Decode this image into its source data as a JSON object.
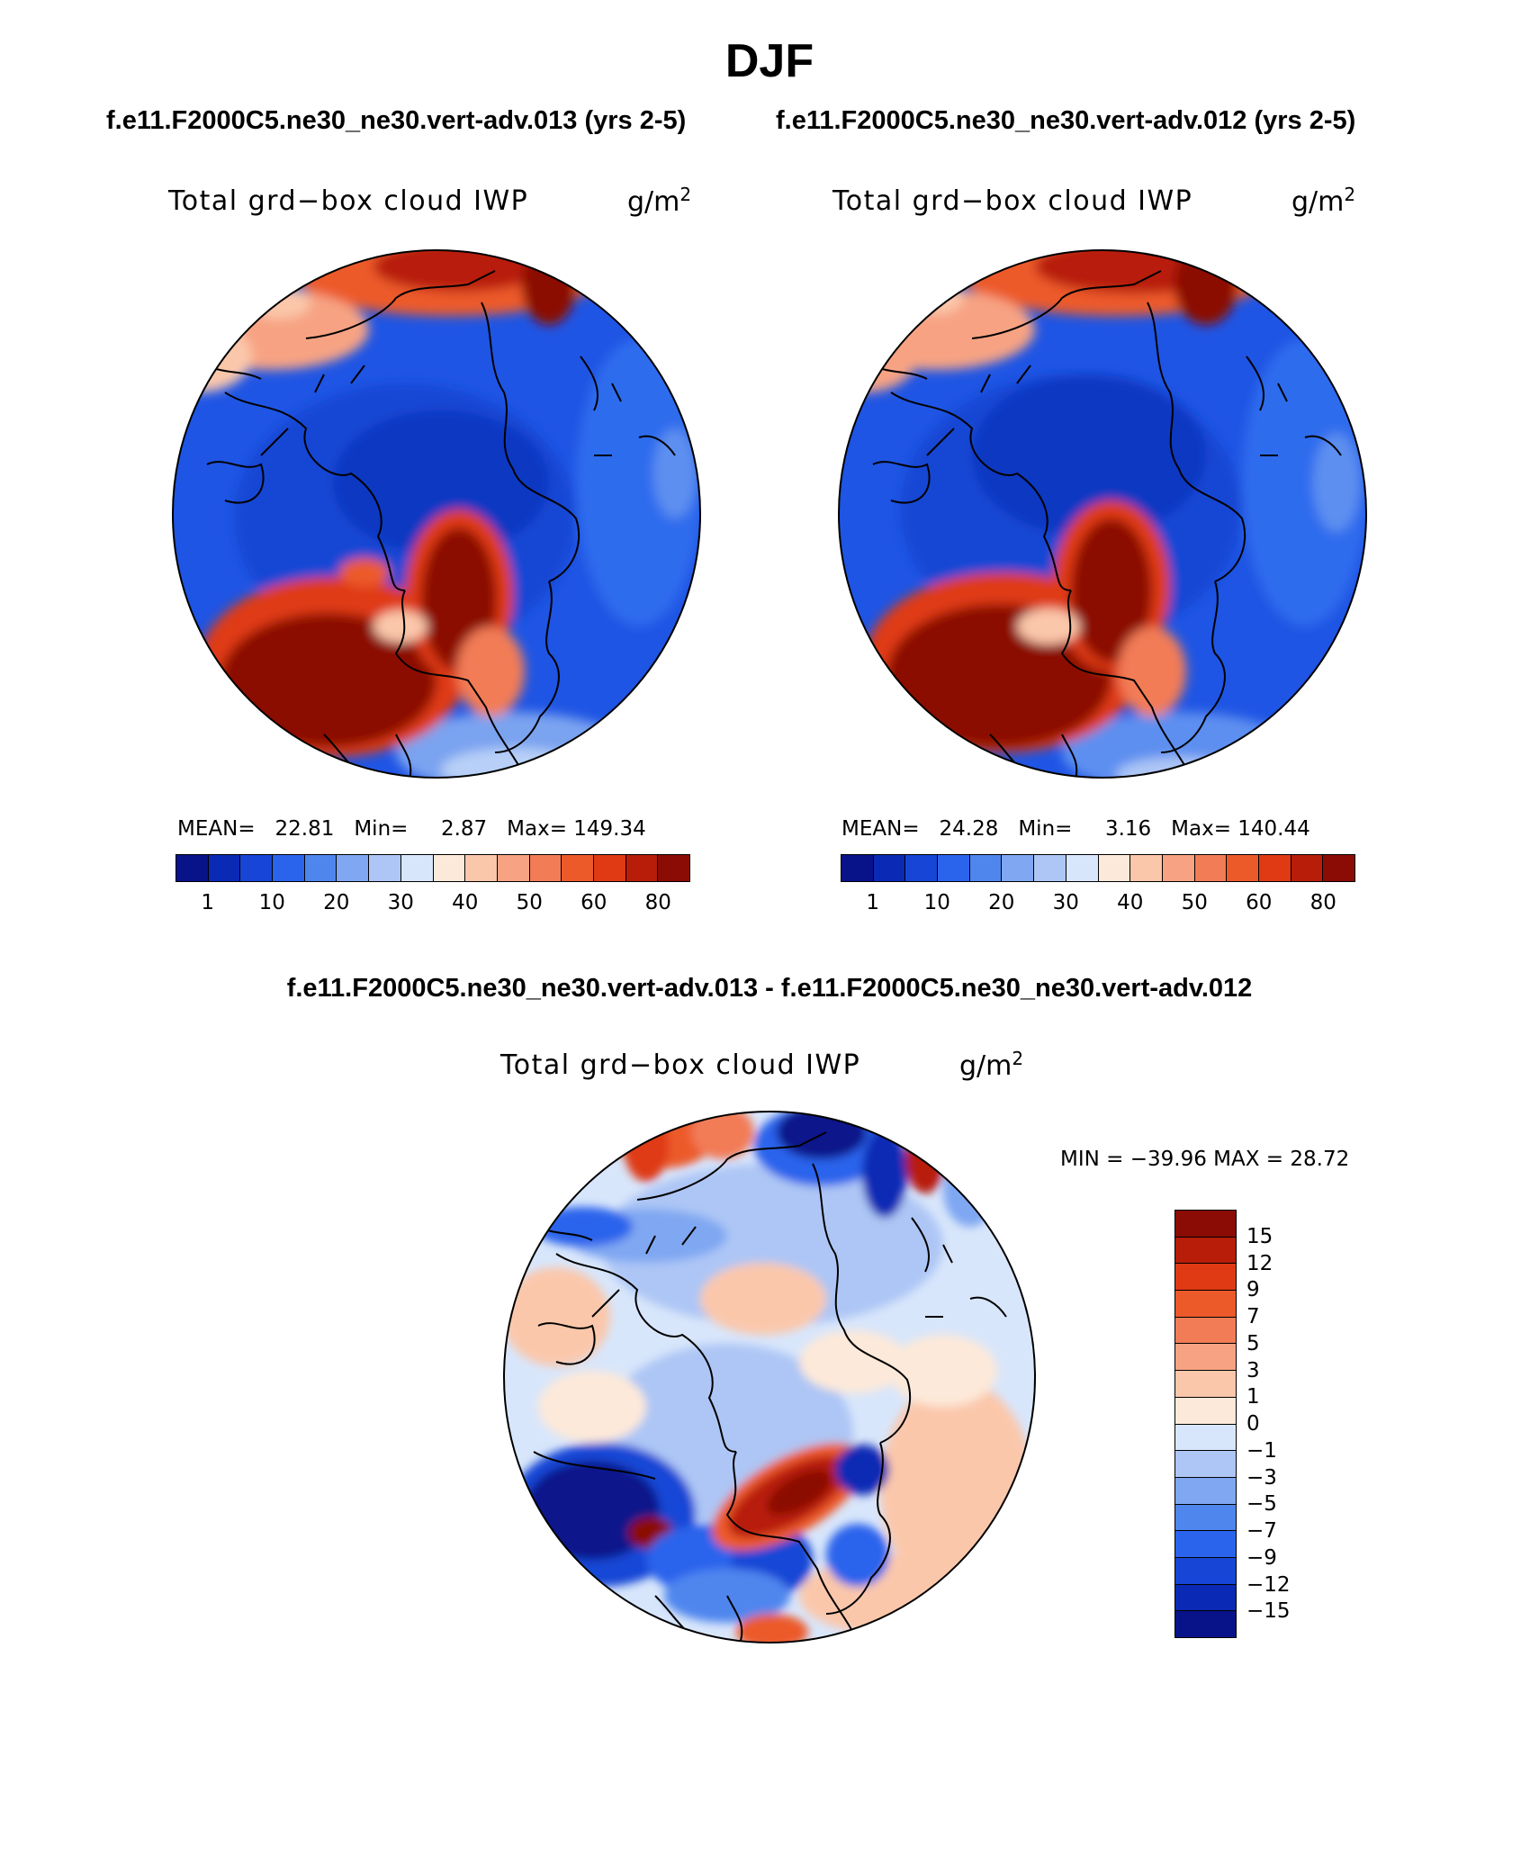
{
  "figure": {
    "season": "DJF",
    "case_a_title": "f.e11.F2000C5.ne30_ne30.vert-adv.013 (yrs 2-5)",
    "case_b_title": "f.e11.F2000C5.ne30_ne30.vert-adv.012 (yrs 2-5)",
    "diff_title": "f.e11.F2000C5.ne30_ne30.vert-adv.013 - f.e11.F2000C5.ne30_ne30.vert-adv.012"
  },
  "panels": {
    "a": {
      "variable": "Total grd−box cloud IWP",
      "units": "g/m",
      "units_exp": "2",
      "mean_label": "MEAN=",
      "mean": "22.81",
      "min_label": "Min=",
      "min": "2.87",
      "max_label": "Max=",
      "max": "149.34"
    },
    "b": {
      "variable": "Total grd−box cloud IWP",
      "units": "g/m",
      "units_exp": "2",
      "mean_label": "MEAN=",
      "mean": "24.28",
      "min_label": "Min=",
      "min": "3.16",
      "max_label": "Max=",
      "max": "140.44"
    },
    "diff": {
      "variable": "Total grd−box cloud IWP",
      "units": "g/m",
      "units_exp": "2",
      "minmax": "MIN = −39.96 MAX =   28.72"
    }
  },
  "colorbar_main": {
    "colors": [
      "#08138a",
      "#0a2ab5",
      "#1746d6",
      "#2b64ec",
      "#4f86ee",
      "#7fa7f2",
      "#adc6f5",
      "#d8e6fb",
      "#fde9d9",
      "#fbc7ab",
      "#f7a383",
      "#f27c56",
      "#ec5a2a",
      "#df3a14",
      "#b81d0a",
      "#8b0b05"
    ],
    "labels": [
      "1",
      "10",
      "20",
      "30",
      "40",
      "50",
      "60",
      "80"
    ]
  },
  "colorbar_diff": {
    "colors": [
      "#8b0b05",
      "#b81d0a",
      "#df3a14",
      "#ec5a2a",
      "#f27c56",
      "#f7a383",
      "#fbc7ab",
      "#fde9d9",
      "#d8e6fb",
      "#adc6f5",
      "#7fa7f2",
      "#4f86ee",
      "#2b64ec",
      "#1746d6",
      "#0a2ab5",
      "#08138a"
    ],
    "labels": [
      "15",
      "12",
      "9",
      "7",
      "5",
      "3",
      "1",
      "0",
      "−1",
      "−3",
      "−5",
      "−7",
      "−9",
      "−12",
      "−15"
    ]
  }
}
